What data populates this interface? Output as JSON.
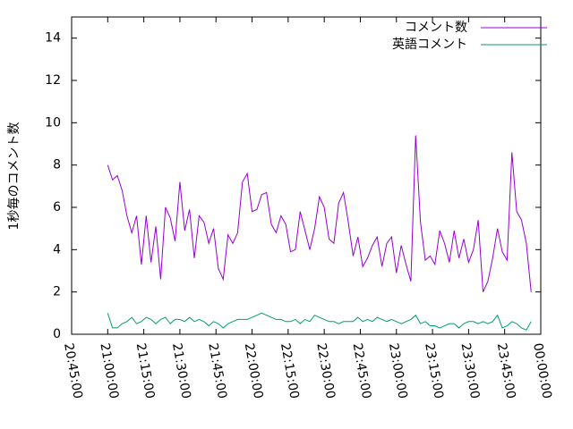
{
  "chart_data": {
    "type": "line",
    "y_label": "1秒毎のコメント数",
    "xlim": [
      "20:45:00",
      "00:00:00"
    ],
    "xticks": [
      "20:45:00",
      "21:00:00",
      "21:15:00",
      "21:30:00",
      "21:45:00",
      "22:00:00",
      "22:15:00",
      "22:30:00",
      "22:45:00",
      "23:00:00",
      "23:15:00",
      "23:30:00",
      "23:45:00",
      "00:00:00"
    ],
    "ylim": [
      0,
      15
    ],
    "yticks": [
      0,
      2,
      4,
      6,
      8,
      10,
      12,
      14
    ],
    "legend": "top-right",
    "x": [
      "21:00:00",
      "21:02:00",
      "21:04:00",
      "21:06:00",
      "21:08:00",
      "21:10:00",
      "21:12:00",
      "21:14:00",
      "21:16:00",
      "21:18:00",
      "21:20:00",
      "21:22:00",
      "21:24:00",
      "21:26:00",
      "21:28:00",
      "21:30:00",
      "21:32:00",
      "21:34:00",
      "21:36:00",
      "21:38:00",
      "21:40:00",
      "21:42:00",
      "21:44:00",
      "21:46:00",
      "21:48:00",
      "21:50:00",
      "21:52:00",
      "21:54:00",
      "21:56:00",
      "21:58:00",
      "22:00:00",
      "22:02:00",
      "22:04:00",
      "22:06:00",
      "22:08:00",
      "22:10:00",
      "22:12:00",
      "22:14:00",
      "22:16:00",
      "22:18:00",
      "22:20:00",
      "22:22:00",
      "22:24:00",
      "22:26:00",
      "22:28:00",
      "22:30:00",
      "22:32:00",
      "22:34:00",
      "22:36:00",
      "22:38:00",
      "22:40:00",
      "22:42:00",
      "22:44:00",
      "22:46:00",
      "22:48:00",
      "22:50:00",
      "22:52:00",
      "22:54:00",
      "22:56:00",
      "22:58:00",
      "23:00:00",
      "23:02:00",
      "23:04:00",
      "23:06:00",
      "23:08:00",
      "23:10:00",
      "23:12:00",
      "23:14:00",
      "23:16:00",
      "23:18:00",
      "23:20:00",
      "23:22:00",
      "23:24:00",
      "23:26:00",
      "23:28:00",
      "23:30:00",
      "23:32:00",
      "23:34:00",
      "23:36:00",
      "23:38:00",
      "23:40:00",
      "23:42:00",
      "23:44:00",
      "23:46:00",
      "23:48:00",
      "23:50:00",
      "23:52:00",
      "23:54:00",
      "23:56:00"
    ],
    "series": [
      {
        "name": "コメント数",
        "color": "#9400d3",
        "values": [
          8.0,
          7.3,
          7.5,
          6.8,
          5.6,
          4.8,
          5.6,
          3.3,
          5.6,
          3.4,
          5.1,
          2.6,
          6.0,
          5.5,
          4.4,
          7.2,
          4.9,
          5.9,
          3.6,
          5.6,
          5.3,
          4.3,
          5.0,
          3.1,
          2.6,
          4.7,
          4.3,
          4.8,
          7.2,
          7.6,
          5.8,
          5.9,
          6.6,
          6.7,
          5.2,
          4.8,
          5.6,
          5.2,
          3.9,
          4.0,
          5.8,
          4.9,
          4.0,
          5.0,
          6.5,
          6.0,
          4.5,
          4.3,
          6.2,
          6.7,
          5.3,
          3.7,
          4.6,
          3.2,
          3.6,
          4.2,
          4.6,
          3.2,
          4.3,
          4.6,
          2.9,
          4.2,
          3.3,
          2.5,
          9.4,
          5.3,
          3.5,
          3.7,
          3.3,
          4.9,
          4.3,
          3.4,
          4.9,
          3.6,
          4.5,
          3.4,
          4.0,
          5.4,
          2.0,
          2.5,
          3.6,
          5.0,
          3.9,
          3.5,
          8.6,
          5.8,
          5.4,
          4.3,
          2.0
        ]
      },
      {
        "name": "英語コメント",
        "color": "#009e73",
        "values": [
          1.0,
          0.3,
          0.3,
          0.5,
          0.6,
          0.8,
          0.5,
          0.6,
          0.8,
          0.7,
          0.5,
          0.7,
          0.8,
          0.5,
          0.7,
          0.7,
          0.6,
          0.8,
          0.6,
          0.7,
          0.6,
          0.4,
          0.6,
          0.5,
          0.3,
          0.5,
          0.6,
          0.7,
          0.7,
          0.7,
          0.8,
          0.9,
          1.0,
          0.9,
          0.8,
          0.7,
          0.7,
          0.6,
          0.6,
          0.7,
          0.5,
          0.7,
          0.6,
          0.9,
          0.8,
          0.7,
          0.6,
          0.6,
          0.5,
          0.6,
          0.6,
          0.6,
          0.8,
          0.6,
          0.7,
          0.6,
          0.8,
          0.7,
          0.6,
          0.7,
          0.6,
          0.5,
          0.6,
          0.7,
          0.9,
          0.5,
          0.6,
          0.4,
          0.4,
          0.3,
          0.4,
          0.5,
          0.5,
          0.3,
          0.5,
          0.6,
          0.6,
          0.5,
          0.6,
          0.5,
          0.6,
          0.9,
          0.3,
          0.4,
          0.6,
          0.5,
          0.3,
          0.2,
          0.6
        ]
      }
    ]
  }
}
